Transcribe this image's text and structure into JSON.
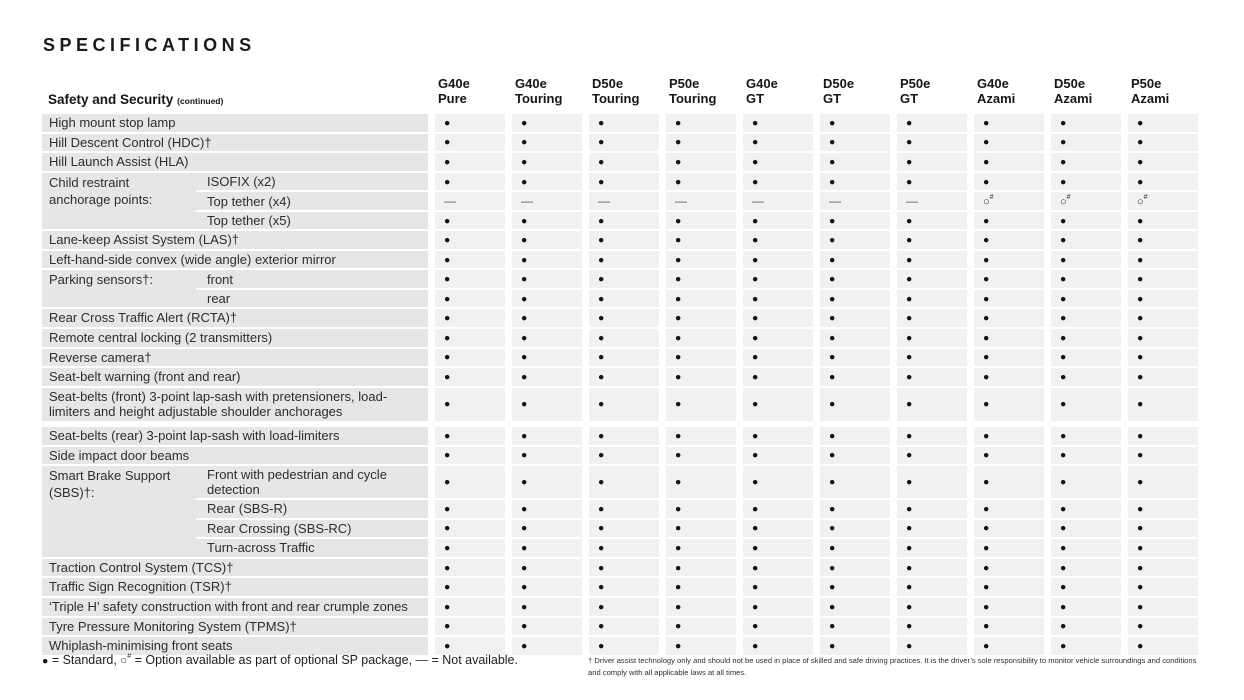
{
  "title": "SPECIFICATIONS",
  "section": {
    "label": "Safety and Security",
    "continued": "(continued)"
  },
  "symbols": {
    "standard": "●",
    "option": "○",
    "option_sup": "#",
    "na": "—"
  },
  "columns": [
    {
      "model": "G40e",
      "grade": "Pure"
    },
    {
      "model": "G40e",
      "grade": "Touring"
    },
    {
      "model": "D50e",
      "grade": "Touring"
    },
    {
      "model": "P50e",
      "grade": "Touring"
    },
    {
      "model": "G40e",
      "grade": "GT"
    },
    {
      "model": "D50e",
      "grade": "GT"
    },
    {
      "model": "P50e",
      "grade": "GT"
    },
    {
      "model": "G40e",
      "grade": "Azami"
    },
    {
      "model": "D50e",
      "grade": "Azami"
    },
    {
      "model": "P50e",
      "grade": "Azami"
    }
  ],
  "rows": [
    {
      "type": "simple",
      "label": "High mount stop lamp",
      "values": "ssssssssss"
    },
    {
      "type": "simple",
      "label": "Hill Descent Control (HDC)†",
      "values": "ssssssssss"
    },
    {
      "type": "simple",
      "label": "Hill Launch Assist (HLA)",
      "values": "ssssssssss"
    },
    {
      "type": "group",
      "label": "Child restraint anchorage points:",
      "subs": [
        {
          "label": "ISOFIX (x2)",
          "values": "ssssssssss"
        },
        {
          "label": "Top tether (x4)",
          "values": "nnnnnnnooo"
        },
        {
          "label": "Top tether (x5)",
          "values": "ssssssssss"
        }
      ]
    },
    {
      "type": "simple",
      "label": "Lane-keep Assist System (LAS)†",
      "values": "ssssssssss"
    },
    {
      "type": "simple",
      "label": "Left-hand-side convex (wide angle) exterior mirror",
      "values": "ssssssssss"
    },
    {
      "type": "group",
      "label": "Parking sensors†:",
      "subs": [
        {
          "label": "front",
          "values": "ssssssssss"
        },
        {
          "label": "rear",
          "values": "ssssssssss"
        }
      ]
    },
    {
      "type": "simple",
      "label": "Rear Cross Traffic Alert (RCTA)†",
      "values": "ssssssssss"
    },
    {
      "type": "simple",
      "label": "Remote central locking (2 transmitters)",
      "values": "ssssssssss"
    },
    {
      "type": "simple",
      "label": "Reverse camera†",
      "values": "ssssssssss"
    },
    {
      "type": "simple",
      "label": "Seat-belt warning (front and rear)",
      "values": "ssssssssss"
    },
    {
      "type": "simple",
      "tall": true,
      "label": "Seat-belts (front) 3-point lap-sash with pretensioners, load-limiters and height adjustable shoulder anchorages",
      "values": "ssssssssss"
    },
    {
      "type": "simple",
      "gap_top": true,
      "label": "Seat-belts (rear) 3-point lap-sash with load-limiters",
      "values": "ssssssssss"
    },
    {
      "type": "simple",
      "label": "Side impact door beams",
      "values": "ssssssssss"
    },
    {
      "type": "group",
      "label": "Smart Brake Support (SBS)†:",
      "subs": [
        {
          "label": "Front with pedestrian and cycle detection",
          "values": "ssssssssss"
        },
        {
          "label": "Rear (SBS-R)",
          "values": "ssssssssss"
        },
        {
          "label": "Rear Crossing (SBS-RC)",
          "values": "ssssssssss"
        },
        {
          "label": "Turn-across Traffic",
          "values": "ssssssssss"
        }
      ]
    },
    {
      "type": "simple",
      "label": "Traction Control System (TCS)†",
      "values": "ssssssssss"
    },
    {
      "type": "simple",
      "label": "Traffic Sign Recognition (TSR)†",
      "values": "ssssssssss"
    },
    {
      "type": "simple",
      "label": "‘Triple H’ safety construction with front and rear crumple zones",
      "values": "ssssssssss"
    },
    {
      "type": "simple",
      "label": "Tyre Pressure Monitoring System (TPMS)†",
      "values": "ssssssssss"
    },
    {
      "type": "simple",
      "label": "Whiplash-minimising front seats",
      "values": "ssssssssss"
    }
  ],
  "legend": {
    "items": [
      {
        "symbol": "standard",
        "text": "= Standard,"
      },
      {
        "symbol": "option",
        "text": "= Option available as part of optional SP package,"
      },
      {
        "symbol": "na",
        "text": "= Not available."
      }
    ]
  },
  "footnote": "† Driver assist technology only and should not be used in place of skilled and safe driving practices. It is the driver’s sole responsibility to monitor vehicle surroundings and conditions and comply with all applicable laws at all times."
}
